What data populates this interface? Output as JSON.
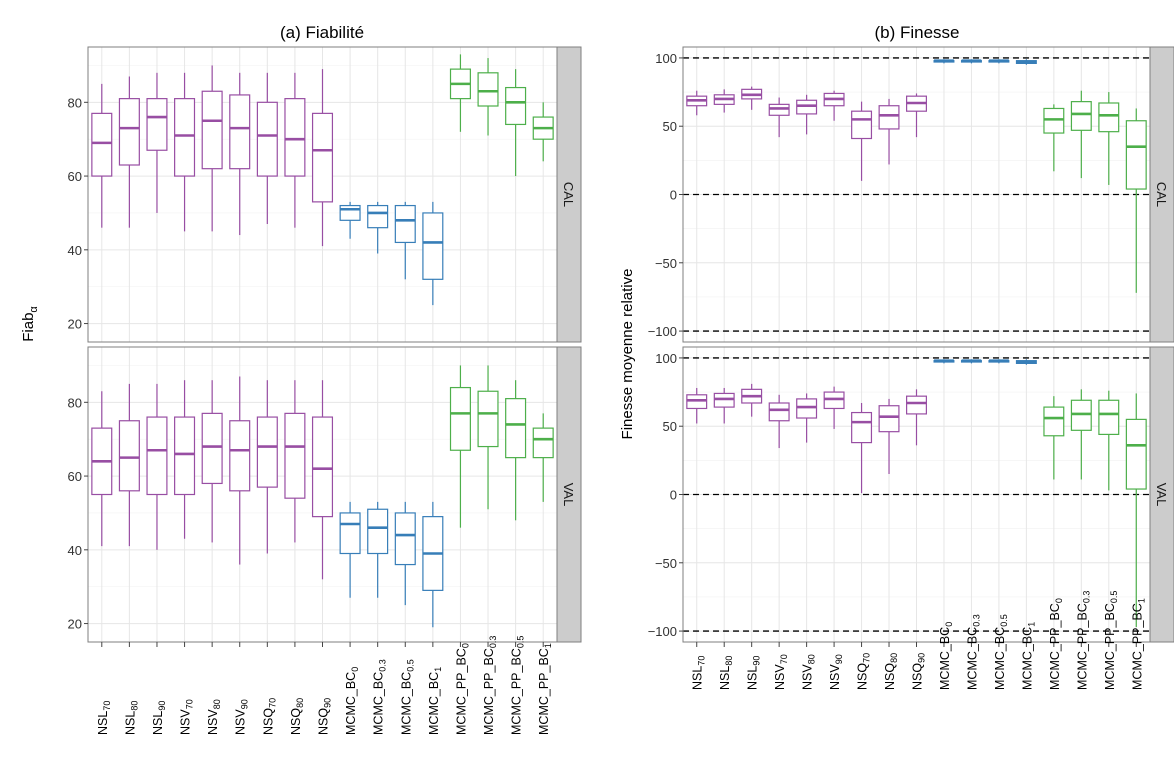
{
  "chart_data": [
    {
      "type": "box",
      "title": "(a) Fiabilité",
      "ylabel": "Fiab",
      "ylabel_sub": "α",
      "ylim": [
        15,
        95
      ],
      "yticks": [
        20,
        40,
        60,
        80
      ],
      "grid": true,
      "legend": "none",
      "categories": [
        {
          "base": "NSL",
          "sub": "70",
          "group": "NS"
        },
        {
          "base": "NSL",
          "sub": "80",
          "group": "NS"
        },
        {
          "base": "NSL",
          "sub": "90",
          "group": "NS"
        },
        {
          "base": "NSV",
          "sub": "70",
          "group": "NS"
        },
        {
          "base": "NSV",
          "sub": "80",
          "group": "NS"
        },
        {
          "base": "NSV",
          "sub": "90",
          "group": "NS"
        },
        {
          "base": "NSQ",
          "sub": "70",
          "group": "NS"
        },
        {
          "base": "NSQ",
          "sub": "80",
          "group": "NS"
        },
        {
          "base": "NSQ",
          "sub": "90",
          "group": "NS"
        },
        {
          "base": "MCMC_BC",
          "sub": "0",
          "group": "MCMC_BC"
        },
        {
          "base": "MCMC_BC",
          "sub": "0.3",
          "group": "MCMC_BC"
        },
        {
          "base": "MCMC_BC",
          "sub": "0.5",
          "group": "MCMC_BC"
        },
        {
          "base": "MCMC_BC",
          "sub": "1",
          "group": "MCMC_BC"
        },
        {
          "base": "MCMC_PP_BC",
          "sub": "0",
          "group": "MCMC_PP_BC"
        },
        {
          "base": "MCMC_PP_BC",
          "sub": "0.3",
          "group": "MCMC_PP_BC"
        },
        {
          "base": "MCMC_PP_BC",
          "sub": "0.5",
          "group": "MCMC_PP_BC"
        },
        {
          "base": "MCMC_PP_BC",
          "sub": "1",
          "group": "MCMC_PP_BC"
        }
      ],
      "panels": [
        {
          "strip": "CAL",
          "boxes": [
            [
              46,
              60,
              69,
              77,
              85
            ],
            [
              46,
              63,
              73,
              81,
              87
            ],
            [
              50,
              67,
              76,
              81,
              88
            ],
            [
              45,
              60,
              71,
              81,
              88
            ],
            [
              45,
              62,
              75,
              83,
              90
            ],
            [
              44,
              62,
              73,
              82,
              88
            ],
            [
              47,
              60,
              71,
              80,
              88
            ],
            [
              46,
              60,
              70,
              81,
              88
            ],
            [
              41,
              53,
              67,
              77,
              89
            ],
            [
              43,
              48,
              51,
              52,
              53
            ],
            [
              39,
              46,
              50,
              52,
              53
            ],
            [
              32,
              42,
              48,
              52,
              53
            ],
            [
              25,
              32,
              42,
              50,
              53
            ],
            [
              72,
              81,
              85,
              89,
              93
            ],
            [
              71,
              79,
              83,
              88,
              92
            ],
            [
              60,
              74,
              80,
              84,
              89
            ],
            [
              64,
              70,
              73,
              76,
              80
            ]
          ]
        },
        {
          "strip": "VAL",
          "boxes": [
            [
              41,
              55,
              64,
              73,
              83
            ],
            [
              41,
              56,
              65,
              75,
              85
            ],
            [
              40,
              55,
              67,
              76,
              85
            ],
            [
              43,
              55,
              66,
              76,
              86
            ],
            [
              42,
              58,
              68,
              77,
              86
            ],
            [
              36,
              56,
              67,
              75,
              87
            ],
            [
              39,
              57,
              68,
              76,
              86
            ],
            [
              42,
              54,
              68,
              77,
              86
            ],
            [
              32,
              49,
              62,
              76,
              86
            ],
            [
              27,
              39,
              47,
              50,
              53
            ],
            [
              27,
              39,
              46,
              51,
              53
            ],
            [
              25,
              36,
              44,
              50,
              53
            ],
            [
              19,
              29,
              39,
              49,
              53
            ],
            [
              46,
              67,
              77,
              84,
              90
            ],
            [
              51,
              68,
              77,
              83,
              90
            ],
            [
              48,
              65,
              74,
              81,
              86
            ],
            [
              53,
              65,
              70,
              73,
              77
            ]
          ]
        }
      ]
    },
    {
      "type": "box",
      "title": "(b) Finesse",
      "ylabel": "Finesse moyenne relative",
      "ylim": [
        -108,
        108
      ],
      "yticks": [
        -100,
        -50,
        0,
        50,
        100
      ],
      "hlines": [
        -100,
        0,
        100
      ],
      "grid": true,
      "legend": "none",
      "categories": [
        {
          "base": "NSL",
          "sub": "70",
          "group": "NS"
        },
        {
          "base": "NSL",
          "sub": "80",
          "group": "NS"
        },
        {
          "base": "NSL",
          "sub": "90",
          "group": "NS"
        },
        {
          "base": "NSV",
          "sub": "70",
          "group": "NS"
        },
        {
          "base": "NSV",
          "sub": "80",
          "group": "NS"
        },
        {
          "base": "NSV",
          "sub": "90",
          "group": "NS"
        },
        {
          "base": "NSQ",
          "sub": "70",
          "group": "NS"
        },
        {
          "base": "NSQ",
          "sub": "80",
          "group": "NS"
        },
        {
          "base": "NSQ",
          "sub": "90",
          "group": "NS"
        },
        {
          "base": "MCMC_BC",
          "sub": "0",
          "group": "MCMC_BC"
        },
        {
          "base": "MCMC_BC",
          "sub": "0.3",
          "group": "MCMC_BC"
        },
        {
          "base": "MCMC_BC",
          "sub": "0.5",
          "group": "MCMC_BC"
        },
        {
          "base": "MCMC_BC",
          "sub": "1",
          "group": "MCMC_BC"
        },
        {
          "base": "MCMC_PP_BC",
          "sub": "0",
          "group": "MCMC_PP_BC"
        },
        {
          "base": "MCMC_PP_BC",
          "sub": "0.3",
          "group": "MCMC_PP_BC"
        },
        {
          "base": "MCMC_PP_BC",
          "sub": "0.5",
          "group": "MCMC_PP_BC"
        },
        {
          "base": "MCMC_PP_BC",
          "sub": "1",
          "group": "MCMC_PP_BC"
        }
      ],
      "panels": [
        {
          "strip": "CAL",
          "boxes": [
            [
              58,
              65,
              69,
              72,
              76
            ],
            [
              60,
              66,
              70,
              73,
              77
            ],
            [
              62,
              70,
              73,
              77,
              79
            ],
            [
              42,
              58,
              63,
              66,
              71
            ],
            [
              44,
              59,
              65,
              69,
              73
            ],
            [
              54,
              65,
              70,
              74,
              76
            ],
            [
              10,
              41,
              55,
              61,
              68
            ],
            [
              22,
              48,
              58,
              65,
              70
            ],
            [
              42,
              61,
              67,
              72,
              74
            ],
            [
              96,
              97,
              98,
              98,
              99
            ],
            [
              96,
              97,
              98,
              98,
              99
            ],
            [
              96,
              97,
              98,
              98,
              99
            ],
            [
              95,
              96,
              97,
              98,
              99
            ],
            [
              17,
              45,
              55,
              63,
              66
            ],
            [
              12,
              47,
              59,
              68,
              76
            ],
            [
              7,
              46,
              58,
              67,
              75
            ],
            [
              -72,
              4,
              35,
              54,
              63
            ]
          ]
        },
        {
          "strip": "VAL",
          "boxes": [
            [
              52,
              63,
              69,
              73,
              78
            ],
            [
              52,
              64,
              70,
              74,
              78
            ],
            [
              57,
              67,
              72,
              77,
              81
            ],
            [
              34,
              54,
              62,
              67,
              73
            ],
            [
              38,
              56,
              64,
              70,
              74
            ],
            [
              48,
              63,
              70,
              75,
              79
            ],
            [
              1,
              38,
              53,
              60,
              67
            ],
            [
              15,
              46,
              57,
              65,
              70
            ],
            [
              36,
              59,
              67,
              72,
              77
            ],
            [
              96,
              97,
              98,
              98,
              99
            ],
            [
              96,
              97,
              98,
              98,
              99
            ],
            [
              96,
              97,
              98,
              98,
              99
            ],
            [
              95,
              96,
              97,
              98,
              99
            ],
            [
              11,
              43,
              56,
              64,
              72
            ],
            [
              11,
              47,
              59,
              69,
              77
            ],
            [
              3,
              44,
              59,
              69,
              76
            ],
            [
              -97,
              4,
              36,
              55,
              74
            ]
          ]
        }
      ]
    }
  ],
  "colors": {
    "NS": "#984ea3",
    "MCMC_BC": "#377eb8",
    "MCMC_PP_BC": "#4daf4a",
    "strip_bg": "#cccccc",
    "grid": "#ebebeb",
    "panel_border": "#7f7f7f"
  }
}
